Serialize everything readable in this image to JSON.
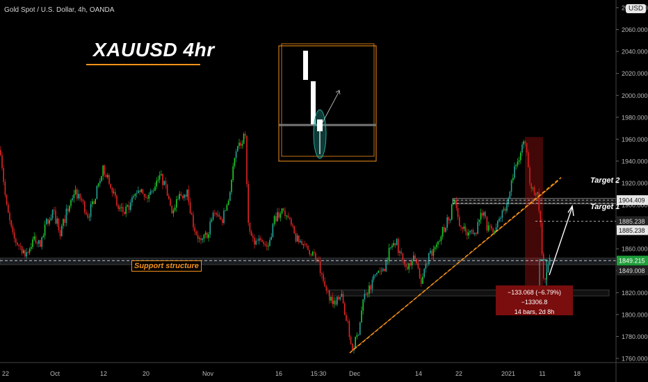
{
  "header": {
    "title": "Gold Spot / U.S. Dollar, 4h, OANDA",
    "currency_badge": "USD"
  },
  "annotations": {
    "main_title": "XAUUSD 4hr",
    "support_label": "Support structure",
    "target1_label": "Target 1",
    "target2_label": "Target 2",
    "measure_line1": "−133.068 (−6.79%) −13306.8",
    "measure_line2": "14 bars, 2d 8h"
  },
  "colors": {
    "bull": "#26a69a",
    "bull_bright": "#1ecf2a",
    "bear": "#e02626",
    "accent": "#f7931a",
    "background": "#000000"
  },
  "chart_data": {
    "type": "candlestick",
    "title": "Gold Spot / U.S. Dollar, 4h, OANDA",
    "ylim": [
      1755,
      2090
    ],
    "y_ticks": [
      1760,
      1780,
      1800,
      1820,
      1840,
      1860,
      1880,
      1900,
      1920,
      1940,
      1960,
      1980,
      2000,
      2020,
      2040,
      2060,
      2080
    ],
    "x_tick_labels": [
      "22",
      "Oct",
      "12",
      "20",
      "Nov",
      "16",
      "15:30",
      "Dec",
      "14",
      "22",
      "2021",
      "11",
      "18"
    ],
    "price_labels": [
      {
        "value": 1904.409,
        "text": "1904.409",
        "style": "line"
      },
      {
        "value": 1885.238,
        "text": "1885.238",
        "style": "dark"
      },
      {
        "value": 1885.238,
        "text": "1885.238",
        "style": "line"
      },
      {
        "value": 1849.215,
        "text": "1849.215",
        "style": "current"
      },
      {
        "value": 1849.008,
        "text": "1849.008",
        "style": "dark"
      }
    ],
    "levels": {
      "target2": 1904.409,
      "target1": 1885.238,
      "support": 1849.215,
      "current": 1849.215
    },
    "path": [
      [
        0,
        1950
      ],
      [
        8,
        1900
      ],
      [
        18,
        1870
      ],
      [
        28,
        1862
      ],
      [
        38,
        1855
      ],
      [
        48,
        1870
      ],
      [
        58,
        1862
      ],
      [
        66,
        1885
      ],
      [
        76,
        1893
      ],
      [
        86,
        1875
      ],
      [
        96,
        1895
      ],
      [
        106,
        1912
      ],
      [
        116,
        1905
      ],
      [
        126,
        1890
      ],
      [
        138,
        1912
      ],
      [
        148,
        1933
      ],
      [
        158,
        1921
      ],
      [
        168,
        1897
      ],
      [
        178,
        1893
      ],
      [
        188,
        1902
      ],
      [
        198,
        1915
      ],
      [
        208,
        1905
      ],
      [
        218,
        1912
      ],
      [
        228,
        1929
      ],
      [
        238,
        1914
      ],
      [
        248,
        1893
      ],
      [
        258,
        1909
      ],
      [
        268,
        1912
      ],
      [
        278,
        1880
      ],
      [
        288,
        1865
      ],
      [
        298,
        1875
      ],
      [
        308,
        1895
      ],
      [
        318,
        1885
      ],
      [
        328,
        1905
      ],
      [
        336,
        1940
      ],
      [
        344,
        1955
      ],
      [
        352,
        1963
      ],
      [
        356,
        1880
      ],
      [
        364,
        1865
      ],
      [
        374,
        1870
      ],
      [
        384,
        1860
      ],
      [
        394,
        1888
      ],
      [
        404,
        1895
      ],
      [
        414,
        1887
      ],
      [
        424,
        1870
      ],
      [
        434,
        1862
      ],
      [
        446,
        1858
      ],
      [
        456,
        1850
      ],
      [
        464,
        1827
      ],
      [
        472,
        1818
      ],
      [
        480,
        1812
      ],
      [
        490,
        1818
      ],
      [
        500,
        1788
      ],
      [
        506,
        1768
      ],
      [
        514,
        1782
      ],
      [
        522,
        1815
      ],
      [
        532,
        1827
      ],
      [
        542,
        1840
      ],
      [
        550,
        1838
      ],
      [
        558,
        1857
      ],
      [
        568,
        1868
      ],
      [
        576,
        1853
      ],
      [
        586,
        1845
      ],
      [
        596,
        1851
      ],
      [
        606,
        1830
      ],
      [
        616,
        1855
      ],
      [
        626,
        1860
      ],
      [
        636,
        1878
      ],
      [
        646,
        1888
      ],
      [
        652,
        1905
      ],
      [
        662,
        1880
      ],
      [
        672,
        1873
      ],
      [
        682,
        1873
      ],
      [
        692,
        1895
      ],
      [
        700,
        1880
      ],
      [
        710,
        1875
      ],
      [
        720,
        1890
      ],
      [
        730,
        1905
      ],
      [
        738,
        1930
      ],
      [
        746,
        1945
      ],
      [
        752,
        1958
      ],
      [
        756,
        1950
      ],
      [
        760,
        1925
      ],
      [
        766,
        1915
      ],
      [
        772,
        1910
      ],
      [
        777,
        1878
      ],
      [
        782,
        1825
      ],
      [
        786,
        1842
      ],
      [
        790,
        1849
      ]
    ],
    "lines": [
      {
        "name": "Target 2",
        "value": 1904.409
      },
      {
        "name": "Target 1",
        "value": 1885.238
      },
      {
        "name": "Support structure",
        "value": 1849.215
      }
    ],
    "measure": {
      "change": -133.068,
      "percent": -6.79,
      "ticks": -13306.8,
      "bars": 14,
      "duration": "2d 8h"
    },
    "legend": "none",
    "grid": false
  }
}
